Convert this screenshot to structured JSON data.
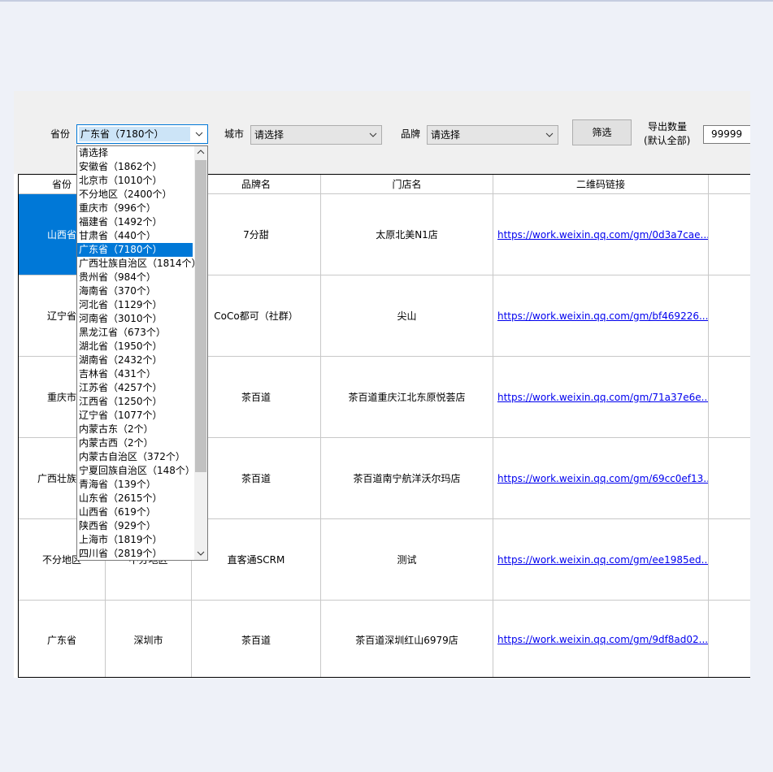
{
  "toolbar": {
    "province_label": "省份",
    "province_value": "广东省（7180个）",
    "city_label": "城市",
    "city_value": "请选择",
    "brand_label": "品牌",
    "brand_value": "请选择",
    "filter_button": "筛选",
    "export_label_line1": "导出数量",
    "export_label_line2": "(默认全部)",
    "export_value": "99999"
  },
  "dropdown": {
    "items": [
      "请选择",
      "安徽省（1862个）",
      "北京市（1010个）",
      "不分地区（2400个）",
      "重庆市（996个）",
      "福建省（1492个）",
      "甘肃省（440个）",
      "广东省（7180个）",
      "广西壮族自治区（1814个）",
      "贵州省（984个）",
      "海南省（370个）",
      "河北省（1129个）",
      "河南省（3010个）",
      "黑龙江省（673个）",
      "湖北省（1950个）",
      "湖南省（2432个）",
      "吉林省（431个）",
      "江苏省（4257个）",
      "江西省（1250个）",
      "辽宁省（1077个）",
      "内蒙古东（2个）",
      "内蒙古西（2个）",
      "内蒙古自治区（372个）",
      "宁夏回族自治区（148个）",
      "青海省（139个）",
      "山东省（2615个）",
      "山西省（619个）",
      "陕西省（929个）",
      "上海市（1819个）",
      "四川省（2819个）"
    ],
    "selected_index": 7
  },
  "table": {
    "headers": [
      "省份",
      null,
      "品牌名",
      "门店名",
      "二维码链接"
    ],
    "rows": [
      [
        "山西省",
        null,
        "7分甜",
        "太原北美N1店",
        "https://work.weixin.qq.com/gm/0d3a7cae..."
      ],
      [
        "辽宁省",
        null,
        "CoCo都可（社群）",
        "尖山",
        "https://work.weixin.qq.com/gm/bf469226..."
      ],
      [
        "重庆市",
        null,
        "茶百道",
        "茶百道重庆江北东原悦荟店",
        "https://work.weixin.qq.com/gm/71a37e6e..."
      ],
      [
        "广西壮族自",
        null,
        "茶百道",
        "茶百道南宁航洋沃尔玛店",
        "https://work.weixin.qq.com/gm/69cc0ef13..."
      ],
      [
        "不分地区",
        "不分地区",
        "直客通SCRM",
        "测试",
        "https://work.weixin.qq.com/gm/ee1985ed..."
      ],
      [
        "广东省",
        "深圳市",
        "茶百道",
        "茶百道深圳红山6979店",
        "https://work.weixin.qq.com/gm/9df8ad02..."
      ]
    ],
    "selected_cell": [
      0,
      0
    ]
  }
}
